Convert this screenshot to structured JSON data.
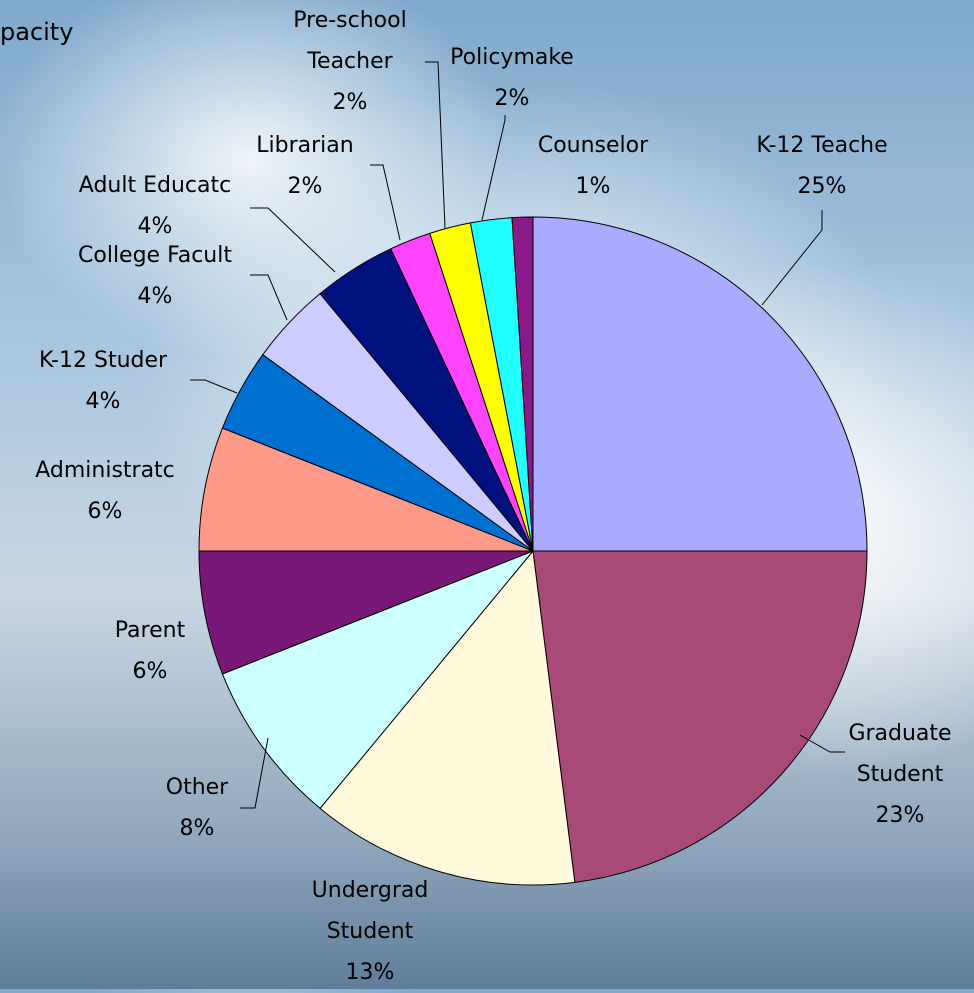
{
  "chart_data": {
    "type": "pie",
    "title": "pacity",
    "categories": [
      "K-12 Teache",
      "Graduate Student",
      "Undergrad Student",
      "Other",
      "Parent",
      "Administratc",
      "K-12 Studer",
      "College Facult",
      "Adult Educatc",
      "Librarian",
      "Pre-school Teacher",
      "Policymake",
      "Counselor"
    ],
    "values": [
      25,
      23,
      13,
      8,
      6,
      6,
      4,
      4,
      4,
      2,
      2,
      2,
      1
    ],
    "value_labels": [
      "25%",
      "23%",
      "13%",
      "8%",
      "6%",
      "6%",
      "4%",
      "4%",
      "4%",
      "2%",
      "2%",
      "2%",
      "1%"
    ],
    "colors": [
      "#aaaaff",
      "#a84a78",
      "#fffadc",
      "#ccffff",
      "#7a1877",
      "#ff9a8a",
      "#0070d0",
      "#ccccff",
      "#00117f",
      "#ff44ff",
      "#ffff00",
      "#22ffff",
      "#8a1a8a"
    ]
  }
}
